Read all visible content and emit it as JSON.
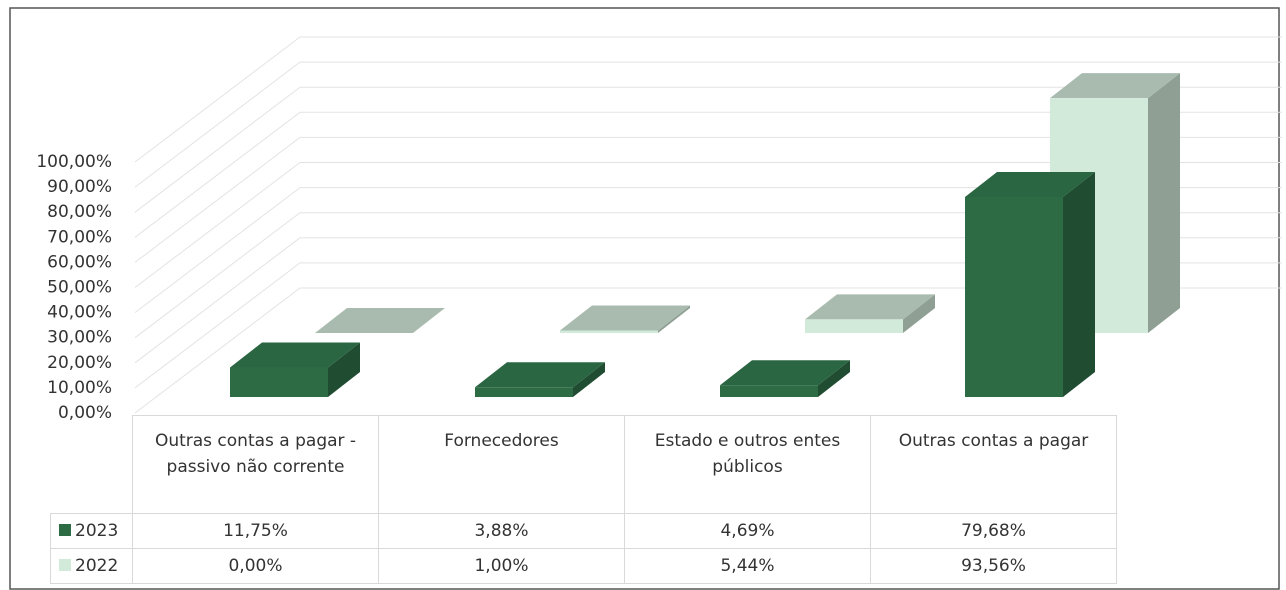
{
  "chart_data": {
    "type": "bar3d",
    "categories": [
      "Outras contas a pagar - passivo não corrente",
      "Fornecedores",
      "Estado e outros entes públicos",
      "Outras contas a pagar"
    ],
    "series": [
      {
        "name": "2023",
        "color": "#2d6b45",
        "values": [
          11.75,
          3.88,
          4.69,
          79.68
        ],
        "value_labels": [
          "11,75%",
          "3,88%",
          "4,69%",
          "79,68%"
        ]
      },
      {
        "name": "2022",
        "color": "#d2eada",
        "values": [
          0,
          1.0,
          5.44,
          93.56
        ],
        "value_labels": [
          "0,00%",
          "1,00%",
          "5,44%",
          "93,56%"
        ]
      }
    ],
    "ylim": [
      0,
      100
    ],
    "yticks": [
      {
        "value": 0,
        "label": "0,00%"
      },
      {
        "value": 10,
        "label": "10,00%"
      },
      {
        "value": 20,
        "label": "20,00%"
      },
      {
        "value": 30,
        "label": "30,00%"
      },
      {
        "value": 40,
        "label": "40,00%"
      },
      {
        "value": 50,
        "label": "50,00%"
      },
      {
        "value": 60,
        "label": "60,00%"
      },
      {
        "value": 70,
        "label": "70,00%"
      },
      {
        "value": 80,
        "label": "80,00%"
      },
      {
        "value": 90,
        "label": "90,00%"
      },
      {
        "value": 100,
        "label": "100,00%"
      }
    ],
    "grid": true
  }
}
